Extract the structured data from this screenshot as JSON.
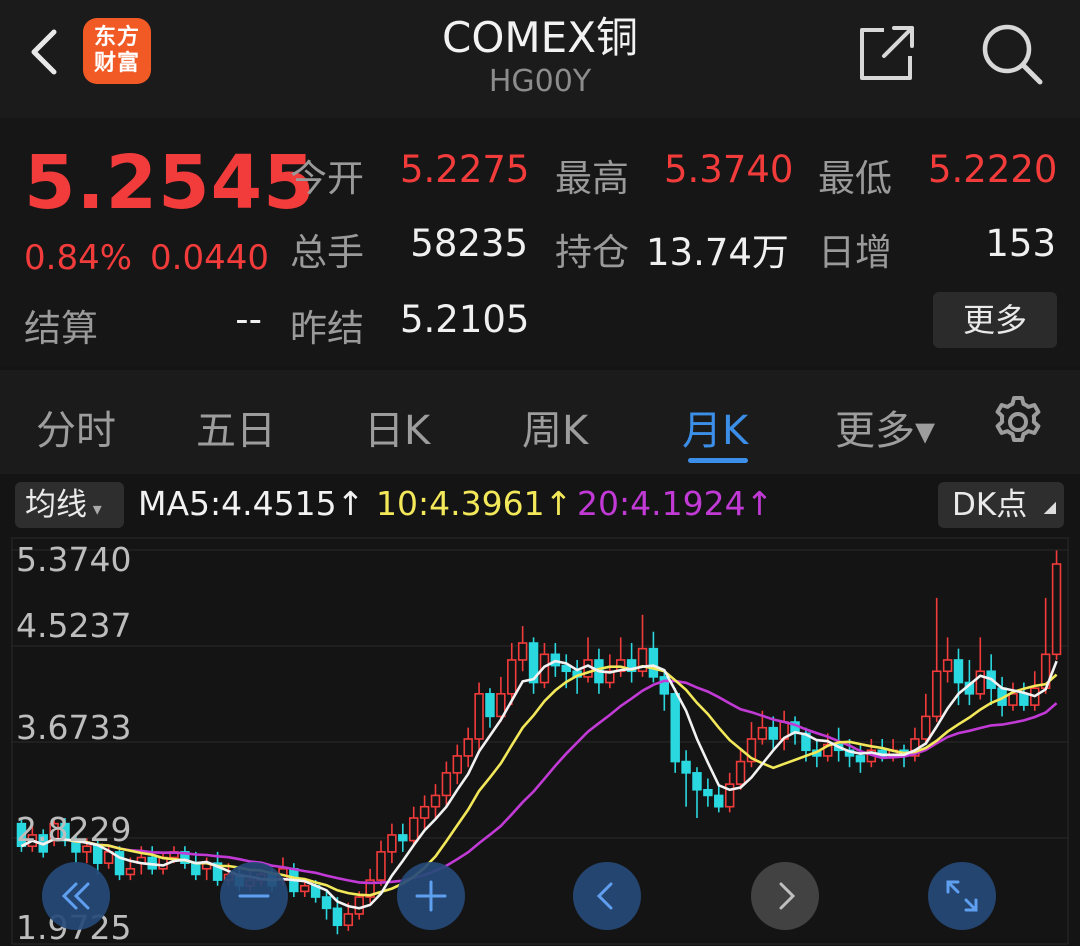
{
  "header": {
    "logo_line1": "东方",
    "logo_line2": "财富",
    "title": "COMEX铜",
    "subtitle": "HG00Y"
  },
  "quote": {
    "price": "5.2545",
    "change_pct": "0.84%",
    "change": "0.0440",
    "open_label": "今开",
    "open": "5.2275",
    "high_label": "最高",
    "high": "5.3740",
    "low_label": "最低",
    "low": "5.2220",
    "volume_label": "总手",
    "volume": "58235",
    "position_label": "持仓",
    "position": "13.74万",
    "daily_inc_label": "日增",
    "daily_inc": "153",
    "settle_label": "结算",
    "settle": "--",
    "prev_settle_label": "昨结",
    "prev_settle": "5.2105",
    "more": "更多"
  },
  "tabs": [
    {
      "label": "分时"
    },
    {
      "label": "五日"
    },
    {
      "label": "日K"
    },
    {
      "label": "周K"
    },
    {
      "label": "月K",
      "active": true
    },
    {
      "label": "更多▾"
    }
  ],
  "indicator": {
    "select": "均线",
    "ma5": "MA5:4.4515↑",
    "ma10": "10:4.3961↑",
    "ma20": "20:4.1924↑",
    "dk": "DK点"
  },
  "colors": {
    "up": "#f23b3b",
    "down": "#2ad8e0",
    "ma5": "#f2f2f2",
    "ma10": "#f2e85a",
    "ma20": "#c23ad6",
    "accent": "#3c8fe8"
  },
  "chart_data": {
    "type": "candlestick",
    "y_ticks": [
      "5.3740",
      "4.5237",
      "3.6733",
      "2.8229",
      "1.9725"
    ],
    "ylim": [
      1.9725,
      5.374
    ],
    "candles": [
      [
        2.95,
        2.75,
        3.0,
        2.7
      ],
      [
        2.75,
        2.85,
        2.95,
        2.7
      ],
      [
        2.85,
        2.7,
        2.9,
        2.65
      ],
      [
        2.8,
        2.95,
        3.0,
        2.75
      ],
      [
        2.95,
        2.8,
        3.0,
        2.75
      ],
      [
        2.8,
        2.7,
        2.85,
        2.6
      ],
      [
        2.7,
        2.75,
        2.82,
        2.6
      ],
      [
        2.75,
        2.6,
        2.8,
        2.5
      ],
      [
        2.6,
        2.7,
        2.75,
        2.55
      ],
      [
        2.7,
        2.5,
        2.75,
        2.45
      ],
      [
        2.5,
        2.55,
        2.65,
        2.45
      ],
      [
        2.6,
        2.65,
        2.75,
        2.5
      ],
      [
        2.65,
        2.55,
        2.75,
        2.5
      ],
      [
        2.55,
        2.65,
        2.7,
        2.5
      ],
      [
        2.65,
        2.7,
        2.75,
        2.6
      ],
      [
        2.7,
        2.6,
        2.75,
        2.55
      ],
      [
        2.6,
        2.5,
        2.7,
        2.45
      ],
      [
        2.55,
        2.6,
        2.65,
        2.45
      ],
      [
        2.6,
        2.45,
        2.7,
        2.4
      ],
      [
        2.45,
        2.5,
        2.6,
        2.4
      ],
      [
        2.5,
        2.4,
        2.55,
        2.35
      ],
      [
        2.4,
        2.45,
        2.55,
        2.35
      ],
      [
        2.45,
        2.5,
        2.55,
        2.4
      ],
      [
        2.5,
        2.4,
        2.55,
        2.35
      ],
      [
        2.45,
        2.55,
        2.65,
        2.4
      ],
      [
        2.55,
        2.35,
        2.6,
        2.3
      ],
      [
        2.35,
        2.4,
        2.45,
        2.3
      ],
      [
        2.4,
        2.3,
        2.45,
        2.25
      ],
      [
        2.3,
        2.2,
        2.35,
        2.1
      ],
      [
        2.2,
        2.05,
        2.3,
        1.97
      ],
      [
        2.05,
        2.15,
        2.25,
        2.0
      ],
      [
        2.15,
        2.3,
        2.35,
        2.1
      ],
      [
        2.3,
        2.45,
        2.55,
        2.25
      ],
      [
        2.45,
        2.7,
        2.8,
        2.4
      ],
      [
        2.7,
        2.85,
        2.95,
        2.6
      ],
      [
        2.85,
        2.8,
        2.95,
        2.7
      ],
      [
        2.8,
        3.0,
        3.1,
        2.75
      ],
      [
        3.0,
        3.1,
        3.2,
        2.9
      ],
      [
        3.1,
        3.2,
        3.3,
        3.0
      ],
      [
        3.2,
        3.4,
        3.5,
        3.1
      ],
      [
        3.4,
        3.55,
        3.65,
        3.3
      ],
      [
        3.55,
        3.7,
        3.8,
        3.45
      ],
      [
        3.7,
        4.1,
        4.2,
        3.6
      ],
      [
        4.1,
        3.9,
        4.15,
        3.8
      ],
      [
        3.9,
        4.1,
        4.25,
        3.85
      ],
      [
        4.1,
        4.4,
        4.55,
        4.0
      ],
      [
        4.4,
        4.55,
        4.7,
        4.3
      ],
      [
        4.55,
        4.2,
        4.6,
        4.1
      ],
      [
        4.2,
        4.45,
        4.55,
        4.15
      ],
      [
        4.45,
        4.35,
        4.55,
        4.25
      ],
      [
        4.35,
        4.3,
        4.45,
        4.15
      ],
      [
        4.3,
        4.25,
        4.4,
        4.1
      ],
      [
        4.25,
        4.4,
        4.6,
        4.2
      ],
      [
        4.4,
        4.2,
        4.5,
        4.1
      ],
      [
        4.2,
        4.3,
        4.45,
        4.15
      ],
      [
        4.3,
        4.4,
        4.6,
        4.25
      ],
      [
        4.4,
        4.3,
        4.55,
        4.2
      ],
      [
        4.3,
        4.5,
        4.8,
        4.25
      ],
      [
        4.5,
        4.25,
        4.65,
        4.2
      ],
      [
        4.25,
        4.1,
        4.3,
        3.95
      ],
      [
        4.1,
        3.5,
        4.15,
        3.4
      ],
      [
        3.5,
        3.4,
        3.6,
        3.1
      ],
      [
        3.4,
        3.25,
        3.45,
        3.0
      ],
      [
        3.25,
        3.2,
        3.35,
        3.1
      ],
      [
        3.2,
        3.1,
        3.3,
        3.05
      ],
      [
        3.1,
        3.3,
        3.4,
        3.05
      ],
      [
        3.3,
        3.5,
        3.6,
        3.25
      ],
      [
        3.5,
        3.7,
        3.85,
        3.45
      ],
      [
        3.7,
        3.8,
        3.95,
        3.65
      ],
      [
        3.8,
        3.7,
        3.9,
        3.6
      ],
      [
        3.7,
        3.85,
        3.95,
        3.6
      ],
      [
        3.85,
        3.75,
        3.9,
        3.65
      ],
      [
        3.75,
        3.6,
        3.8,
        3.5
      ],
      [
        3.6,
        3.55,
        3.7,
        3.45
      ],
      [
        3.55,
        3.65,
        3.75,
        3.5
      ],
      [
        3.65,
        3.6,
        3.8,
        3.5
      ],
      [
        3.6,
        3.55,
        3.7,
        3.45
      ],
      [
        3.55,
        3.5,
        3.65,
        3.4
      ],
      [
        3.5,
        3.6,
        3.7,
        3.45
      ],
      [
        3.6,
        3.55,
        3.7,
        3.5
      ],
      [
        3.55,
        3.6,
        3.7,
        3.5
      ],
      [
        3.6,
        3.55,
        3.65,
        3.45
      ],
      [
        3.55,
        3.7,
        3.8,
        3.5
      ],
      [
        3.7,
        3.9,
        4.1,
        3.65
      ],
      [
        3.9,
        4.3,
        4.95,
        3.85
      ],
      [
        4.3,
        4.4,
        4.6,
        4.2
      ],
      [
        4.4,
        4.2,
        4.5,
        4.0
      ],
      [
        4.2,
        4.1,
        4.4,
        4.0
      ],
      [
        4.1,
        4.3,
        4.6,
        4.05
      ],
      [
        4.3,
        4.15,
        4.45,
        4.0
      ],
      [
        4.15,
        4.0,
        4.25,
        3.9
      ],
      [
        4.0,
        4.1,
        4.2,
        3.95
      ],
      [
        4.1,
        4.0,
        4.2,
        3.95
      ],
      [
        4.0,
        4.15,
        4.3,
        3.95
      ],
      [
        4.15,
        4.45,
        4.95,
        4.1
      ],
      [
        4.45,
        5.25,
        5.37,
        4.4
      ]
    ]
  },
  "footer": {
    "buttons": [
      "fast-back",
      "zoom-out",
      "zoom-in",
      "prev",
      "next",
      "fullscreen"
    ]
  }
}
